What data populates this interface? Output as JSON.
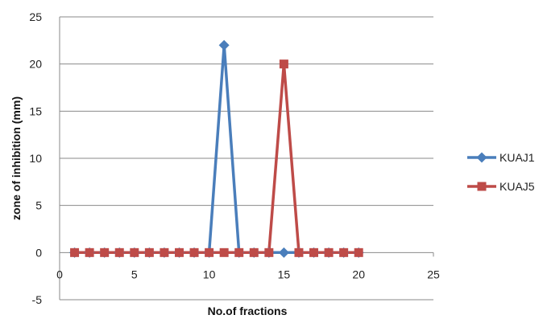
{
  "chart_data": {
    "type": "line",
    "xlabel": "No.of fractions",
    "ylabel": "zone of inhibition (mm)",
    "xlim": [
      0,
      25
    ],
    "ylim": [
      -5,
      25
    ],
    "xticks": [
      0,
      5,
      10,
      15,
      20,
      25
    ],
    "yticks": [
      -5,
      0,
      5,
      10,
      15,
      20,
      25
    ],
    "grid": "horizontal",
    "legend_position": "right",
    "series": [
      {
        "name": "KUAJ1",
        "color": "#4a7ebb",
        "marker": "diamond",
        "x": [
          1,
          2,
          3,
          4,
          5,
          6,
          7,
          8,
          9,
          10,
          11,
          12,
          13,
          14,
          15,
          16,
          17,
          18,
          19,
          20
        ],
        "y": [
          0,
          0,
          0,
          0,
          0,
          0,
          0,
          0,
          0,
          0,
          22,
          0,
          0,
          0,
          0,
          0,
          0,
          0,
          0,
          0
        ]
      },
      {
        "name": "KUAJ5",
        "color": "#be4b48",
        "marker": "square",
        "x": [
          1,
          2,
          3,
          4,
          5,
          6,
          7,
          8,
          9,
          10,
          11,
          12,
          13,
          14,
          15,
          16,
          17,
          18,
          19,
          20
        ],
        "y": [
          0,
          0,
          0,
          0,
          0,
          0,
          0,
          0,
          0,
          0,
          0,
          0,
          0,
          0,
          20,
          0,
          0,
          0,
          0,
          0
        ]
      }
    ]
  }
}
